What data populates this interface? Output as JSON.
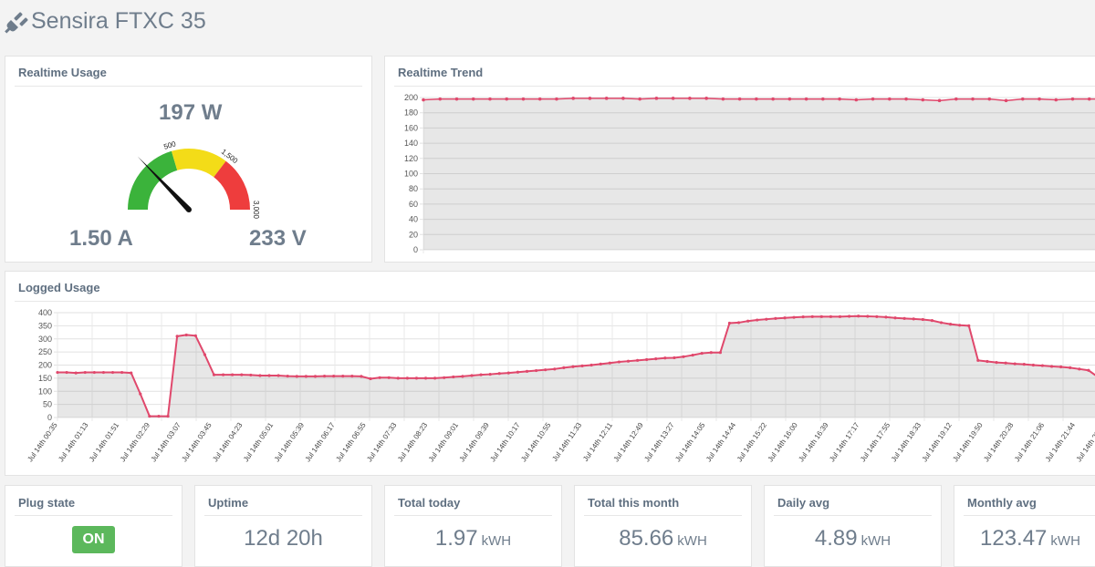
{
  "app": {
    "title": "Sensira FTXC 35",
    "icon": "plug-icon"
  },
  "realtime_usage": {
    "title": "Realtime Usage",
    "power": "197 W",
    "current": "1.50 A",
    "voltage": "233 V",
    "gauge": {
      "value": 197,
      "min": 0,
      "max": 3000,
      "tick_labels": [
        "500",
        "1,500",
        "3,000"
      ],
      "bands": [
        {
          "from": 0,
          "to": 500,
          "color": "#3bb33b"
        },
        {
          "from": 500,
          "to": 1500,
          "color": "#f3dc18"
        },
        {
          "from": 1500,
          "to": 3000,
          "color": "#ee3d3d"
        }
      ]
    }
  },
  "realtime_trend": {
    "title": "Realtime Trend",
    "chart_data": {
      "type": "line",
      "ylim": [
        0,
        200
      ],
      "yticks": [
        0,
        20,
        40,
        60,
        80,
        100,
        120,
        140,
        160,
        180,
        200
      ],
      "values": [
        197,
        198,
        198,
        198,
        198,
        198,
        198,
        198,
        198,
        199,
        199,
        199,
        199,
        198,
        199,
        199,
        199,
        199,
        198,
        198,
        198,
        198,
        198,
        198,
        198,
        198,
        197,
        198,
        198,
        198,
        197,
        196,
        198,
        198,
        198,
        196,
        198,
        198,
        197,
        198,
        198,
        198
      ],
      "grid": true,
      "color": "#e0486c"
    }
  },
  "logged_usage": {
    "title": "Logged Usage",
    "chart_data": {
      "type": "area",
      "ylim": [
        0,
        400
      ],
      "yticks": [
        0,
        50,
        100,
        150,
        200,
        250,
        300,
        350,
        400
      ],
      "x_labels": [
        "Jul 14th 00:35",
        "Jul 14th 01:13",
        "Jul 14th 01:51",
        "Jul 14th 02:29",
        "Jul 14th 03:07",
        "Jul 14th 03:45",
        "Jul 14th 04:23",
        "Jul 14th 05:01",
        "Jul 14th 05:39",
        "Jul 14th 06:17",
        "Jul 14th 06:55",
        "Jul 14th 07:33",
        "Jul 14th 08:23",
        "Jul 14th 09:01",
        "Jul 14th 09:39",
        "Jul 14th 10:17",
        "Jul 14th 10:55",
        "Jul 14th 11:33",
        "Jul 14th 12:11",
        "Jul 14th 12:49",
        "Jul 14th 13:27",
        "Jul 14th 14:05",
        "Jul 14th 14:44",
        "Jul 14th 15:22",
        "Jul 14th 16:00",
        "Jul 14th 16:39",
        "Jul 14th 17:17",
        "Jul 14th 17:55",
        "Jul 14th 18:33",
        "Jul 14th 19:12",
        "Jul 14th 19:50",
        "Jul 14th 20:28",
        "Jul 14th 21:06",
        "Jul 14th 21:44",
        "Jul 14th 22:22",
        "Jul 1"
      ],
      "values": [
        172,
        172,
        170,
        172,
        172,
        172,
        172,
        172,
        170,
        90,
        5,
        5,
        5,
        310,
        315,
        312,
        240,
        163,
        163,
        163,
        163,
        162,
        160,
        160,
        160,
        158,
        157,
        157,
        157,
        158,
        158,
        158,
        158,
        157,
        148,
        152,
        152,
        150,
        150,
        150,
        150,
        150,
        152,
        155,
        157,
        160,
        163,
        165,
        168,
        170,
        173,
        176,
        179,
        182,
        185,
        190,
        194,
        197,
        200,
        204,
        208,
        212,
        215,
        218,
        221,
        224,
        227,
        228,
        232,
        238,
        245,
        248,
        248,
        360,
        362,
        368,
        372,
        375,
        378,
        380,
        382,
        384,
        385,
        385,
        385,
        385,
        386,
        387,
        386,
        385,
        383,
        380,
        378,
        376,
        374,
        370,
        362,
        356,
        352,
        350,
        218,
        214,
        210,
        208,
        205,
        203,
        200,
        198,
        195,
        193,
        190,
        185,
        180,
        155
      ],
      "grid": true,
      "color": "#e0486c"
    }
  },
  "stats": [
    {
      "title": "Plug state",
      "value": "ON",
      "unit": ""
    },
    {
      "title": "Uptime",
      "value": "12d 20h",
      "unit": ""
    },
    {
      "title": "Total today",
      "value": "1.97",
      "unit": "kWH"
    },
    {
      "title": "Total this month",
      "value": "85.66",
      "unit": "kWH"
    },
    {
      "title": "Daily avg",
      "value": "4.89",
      "unit": "kWH"
    },
    {
      "title": "Monthly avg",
      "value": "123.47",
      "unit": "kWH"
    }
  ]
}
